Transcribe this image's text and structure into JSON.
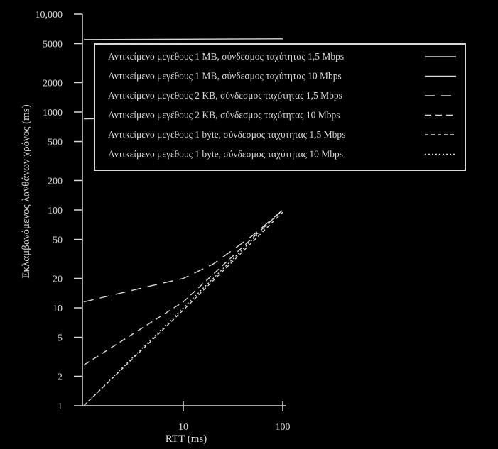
{
  "chart_data": {
    "type": "line",
    "title": "",
    "xlabel": "RTT (ms)",
    "ylabel": "Εκλαμβανόμενος λανθάνων χρόνος (ms)",
    "x_scale": "log",
    "y_scale": "log",
    "xlim": [
      1,
      100
    ],
    "ylim": [
      1,
      10000
    ],
    "x_ticks": [
      10,
      100
    ],
    "x_tick_labels": [
      "10",
      "100"
    ],
    "y_ticks": [
      1,
      2,
      5,
      10,
      20,
      50,
      100,
      200,
      500,
      1000,
      2000,
      5000,
      10000
    ],
    "y_tick_labels": [
      "1",
      "2",
      "5",
      "10",
      "20",
      "50",
      "100",
      "200",
      "500",
      "1000",
      "2000",
      "5000",
      "10,000"
    ],
    "grid": false,
    "legend_position": "top-right",
    "colors": {
      "background": "#000000",
      "foreground": "#d8d8d8"
    },
    "series": [
      {
        "name": "Αντικείμενο μεγέθους 1 MB, σύνδεσμος ταχύτητας 1,5 Mbps",
        "dash": "solid",
        "x": [
          1,
          100
        ],
        "y": [
          5500,
          5600
        ]
      },
      {
        "name": "Αντικείμενο μεγέθους 1 MB, σύνδεσμος ταχύτητας 10 Mbps",
        "dash": "solid",
        "x": [
          1,
          100
        ],
        "y": [
          850,
          950
        ]
      },
      {
        "name": "Αντικείμενο μεγέθους 2 KB, σύνδεσμος ταχύτητας 1,5 Mbps",
        "dash": "long-dash",
        "x": [
          1,
          5,
          10,
          20,
          50,
          100
        ],
        "y": [
          11.5,
          17,
          20,
          28,
          55,
          100
        ]
      },
      {
        "name": "Αντικείμενο μεγέθους 2 KB, σύνδεσμος ταχύτητας 10 Mbps",
        "dash": "medium-dash",
        "x": [
          1,
          10,
          100
        ],
        "y": [
          2.6,
          11.5,
          100
        ]
      },
      {
        "name": "Αντικείμενο μεγέθους 1 byte, σύνδεσμος ταχύτητας 1,5 Mbps",
        "dash": "short-dash",
        "x": [
          1,
          10,
          100
        ],
        "y": [
          1,
          9.5,
          95
        ]
      },
      {
        "name": "Αντικείμενο μεγέθους 1 byte, σύνδεσμος ταχύτητας 10 Mbps",
        "dash": "dot",
        "x": [
          1,
          10,
          100
        ],
        "y": [
          1,
          10,
          100
        ]
      }
    ]
  }
}
